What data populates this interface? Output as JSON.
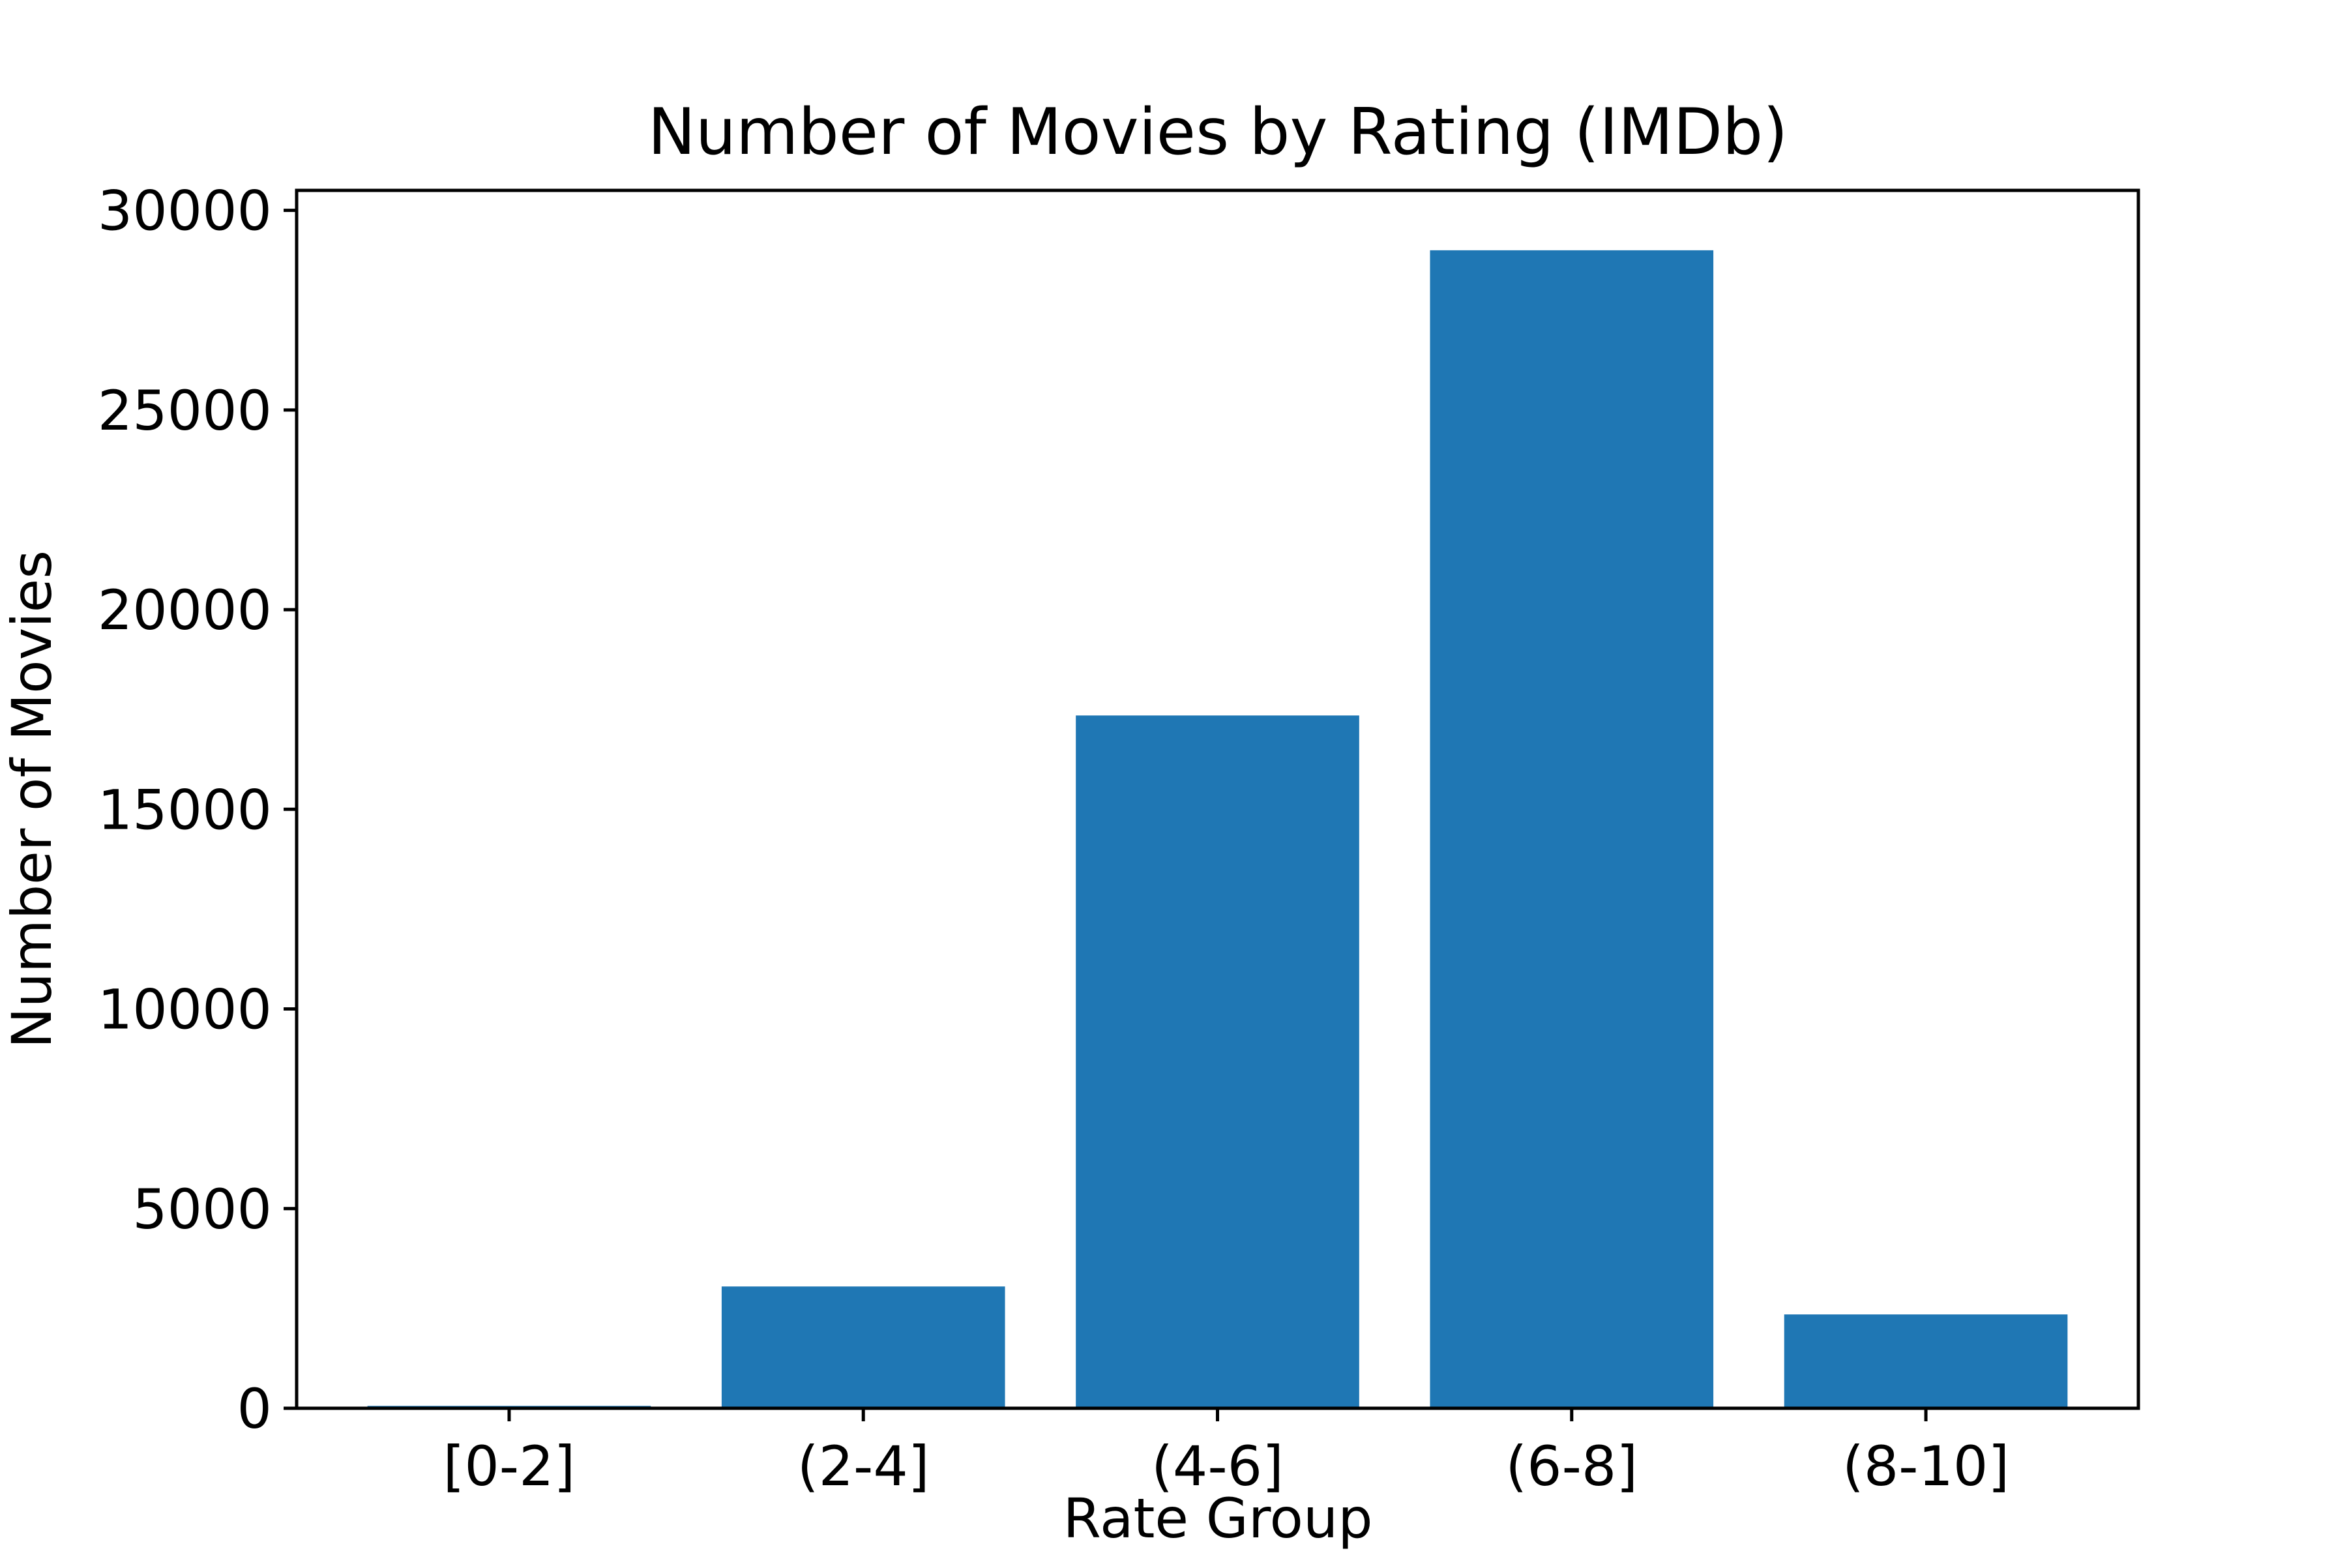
{
  "chart_data": {
    "type": "bar",
    "title": "Number of Movies by Rating (IMDb)",
    "xlabel": "Rate Group",
    "ylabel": "Number of Movies",
    "categories": [
      "[0-2]",
      "(2-4]",
      "(4-6]",
      "(6-8]",
      "(8-10]"
    ],
    "values": [
      60,
      3050,
      17350,
      29000,
      2350
    ],
    "ylim": [
      0,
      30500
    ],
    "yticks": [
      0,
      5000,
      10000,
      15000,
      20000,
      25000,
      30000
    ],
    "grid": false,
    "legend": "none",
    "bar_color": "#1f77b4"
  }
}
